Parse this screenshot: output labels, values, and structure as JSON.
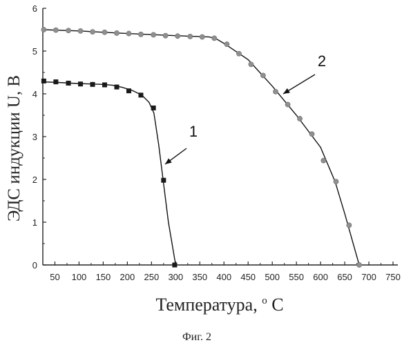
{
  "chart_data": {
    "type": "scatter",
    "xlabel": "Температура,",
    "xlabel_sup": "o",
    "xlabel_unit": "C",
    "ylabel": "ЭДС индукции U, В",
    "xlim": [
      25,
      760
    ],
    "ylim": [
      0,
      6
    ],
    "xticks": [
      50,
      100,
      150,
      200,
      250,
      300,
      350,
      400,
      450,
      500,
      550,
      600,
      650,
      700,
      750
    ],
    "yticks": [
      0,
      1,
      2,
      3,
      4,
      5,
      6
    ],
    "grid": false,
    "caption": "Фиг. 2",
    "series": [
      {
        "label": "1",
        "marker": "square",
        "color": "#1a1a1a",
        "x": [
          27,
          52,
          78,
          103,
          128,
          153,
          178,
          203,
          228,
          254,
          275,
          298
        ],
        "y": [
          4.3,
          4.28,
          4.25,
          4.23,
          4.22,
          4.21,
          4.16,
          4.07,
          3.97,
          3.67,
          1.98,
          0.0
        ],
        "curve_x": [
          25,
          50,
          100,
          150,
          170,
          190,
          210,
          230,
          245,
          255,
          265,
          275,
          285,
          300
        ],
        "curve_y": [
          4.28,
          4.27,
          4.24,
          4.22,
          4.2,
          4.15,
          4.08,
          3.97,
          3.8,
          3.55,
          2.8,
          1.9,
          1.0,
          0.0
        ]
      },
      {
        "label": "2",
        "marker": "circle",
        "color": "#8f8f8f",
        "x": [
          27,
          52,
          78,
          103,
          128,
          153,
          178,
          203,
          228,
          254,
          279,
          304,
          330,
          355,
          380,
          406,
          431,
          456,
          481,
          507,
          532,
          557,
          582,
          606,
          632,
          659,
          680
        ],
        "y": [
          5.5,
          5.49,
          5.48,
          5.47,
          5.45,
          5.44,
          5.42,
          5.41,
          5.39,
          5.38,
          5.36,
          5.35,
          5.34,
          5.33,
          5.3,
          5.16,
          4.94,
          4.69,
          4.43,
          4.05,
          3.75,
          3.42,
          3.06,
          2.44,
          1.95,
          0.93,
          0.0
        ],
        "curve_x": [
          25,
          100,
          200,
          300,
          370,
          385,
          400,
          450,
          500,
          550,
          600,
          630,
          650,
          680
        ],
        "curve_y": [
          5.5,
          5.47,
          5.41,
          5.36,
          5.33,
          5.28,
          5.18,
          4.8,
          4.18,
          3.5,
          2.75,
          1.95,
          1.2,
          0.0
        ]
      }
    ]
  }
}
